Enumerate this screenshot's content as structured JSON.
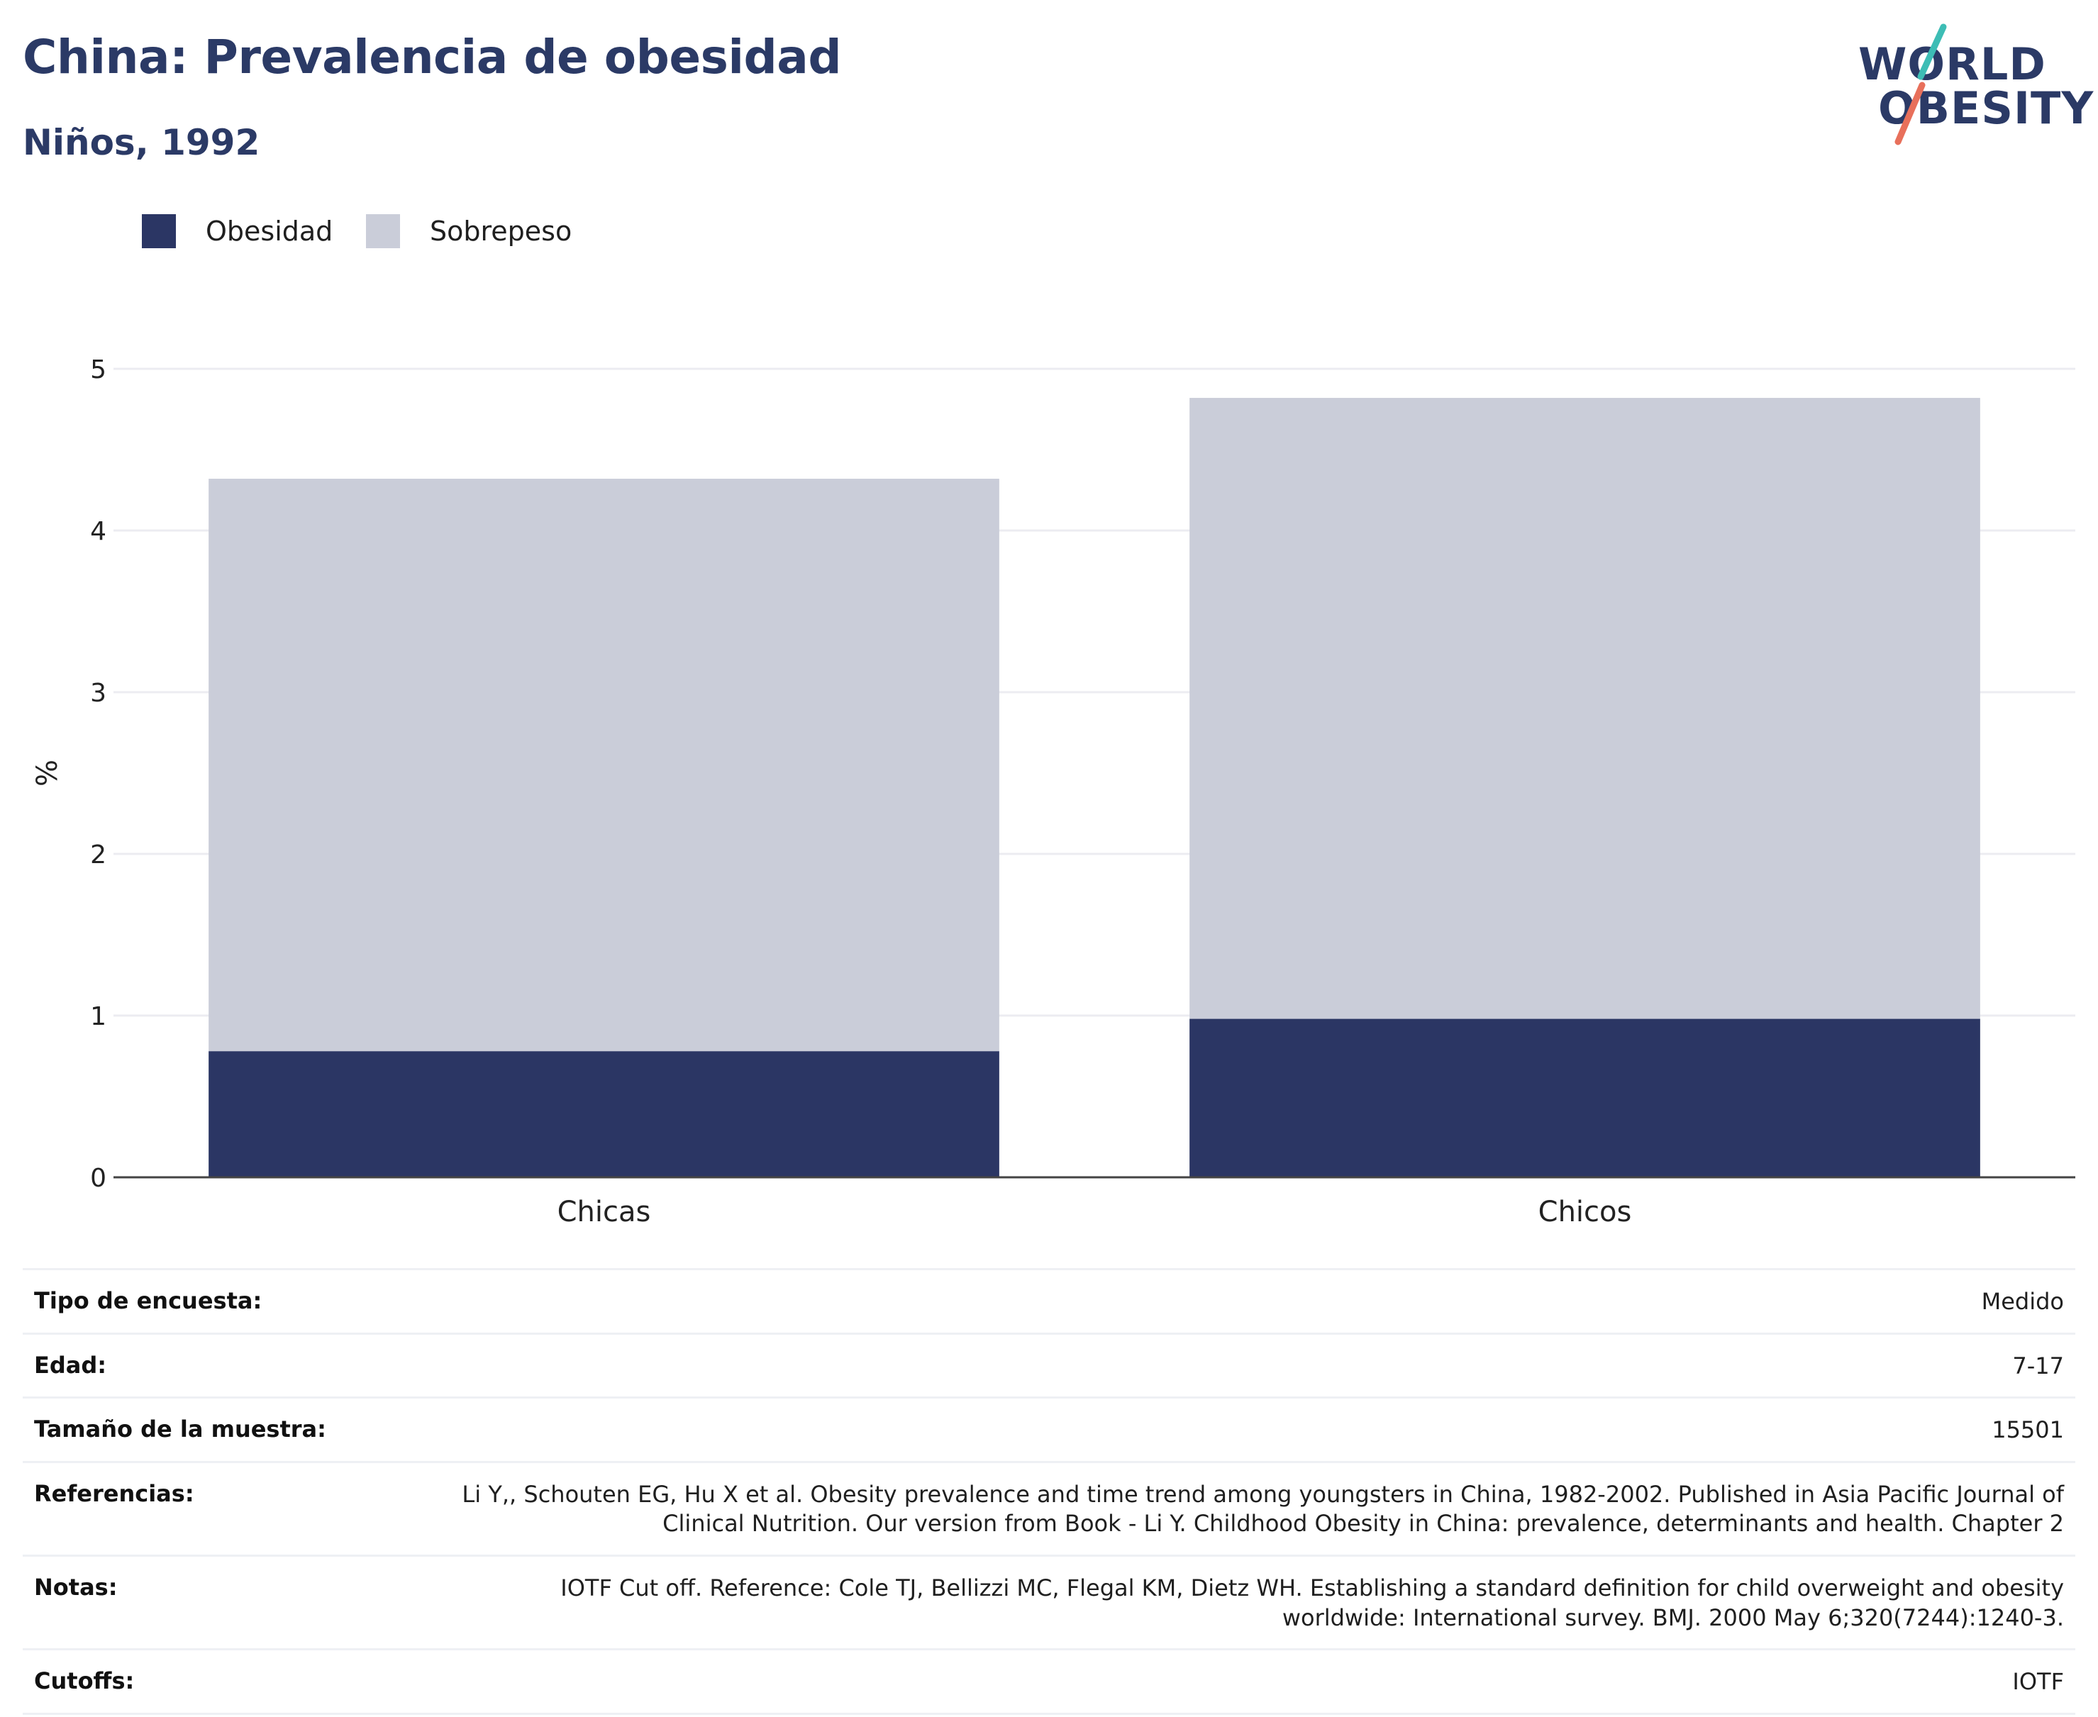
{
  "header": {
    "title": "China: Prevalencia de obesidad",
    "subtitle": "Niños, 1992"
  },
  "logo": {
    "line1": "WORLD",
    "line2": "OBESITY",
    "slash_colors": [
      "#3dbdb5",
      "#e8705b"
    ]
  },
  "colors": {
    "obesity": "#2b3664",
    "overweight": "#cacdd9",
    "axis": "#444444",
    "grid": "#ececf1",
    "title": "#2b3a66"
  },
  "chart_data": {
    "type": "bar",
    "stacked": true,
    "categories": [
      "Chicas",
      "Chicos"
    ],
    "series": [
      {
        "name": "Obesidad",
        "values": [
          0.78,
          0.98
        ]
      },
      {
        "name": "Sobrepeso",
        "values": [
          3.54,
          3.84
        ]
      }
    ],
    "ylabel": "%",
    "xlabel": "",
    "ylim": [
      0,
      5
    ],
    "yticks": [
      "0",
      "1",
      "2",
      "3",
      "4",
      "5"
    ],
    "grid": true,
    "legend_position": "top-left"
  },
  "metadata": [
    {
      "key": "Tipo de encuesta:",
      "value": "Medido"
    },
    {
      "key": "Edad:",
      "value": "7-17"
    },
    {
      "key": "Tamaño de la muestra:",
      "value": "15501"
    },
    {
      "key": "Referencias:",
      "value": "Li Y,, Schouten EG, Hu X et al. Obesity prevalence and time trend among youngsters in China, 1982-2002. Published in Asia Pacific Journal of Clinical Nutrition. Our version from Book - Li Y. Childhood Obesity in China: prevalence, determinants and health. Chapter 2"
    },
    {
      "key": "Notas:",
      "value": "IOTF Cut off. Reference: Cole TJ, Bellizzi MC, Flegal KM, Dietz WH. Establishing a standard definition for child overweight and obesity worldwide: International survey. BMJ. 2000 May 6;320(7244):1240-3."
    },
    {
      "key": "Cutoffs:",
      "value": "IOTF"
    }
  ]
}
